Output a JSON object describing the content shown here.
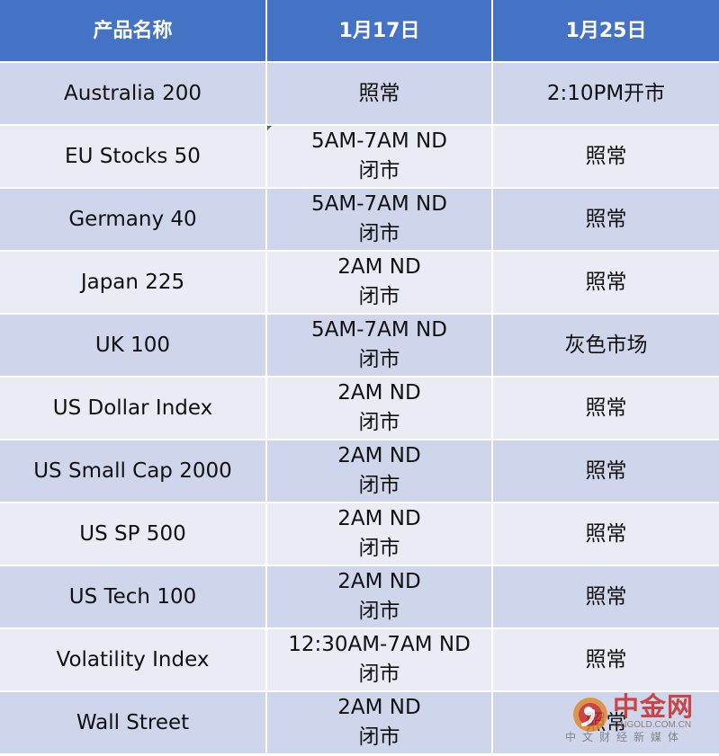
{
  "table": {
    "headers": [
      "产品名称",
      "1月17日",
      "1月25日"
    ],
    "rows": [
      {
        "product": "Australia 200",
        "jan17": [
          "照常"
        ],
        "jan25": [
          "2:10PM开市"
        ]
      },
      {
        "product": "EU Stocks 50",
        "jan17": [
          "5AM-7AM ND",
          "闭市"
        ],
        "jan25": [
          "照常"
        ]
      },
      {
        "product": "Germany 40",
        "jan17": [
          "5AM-7AM ND",
          "闭市"
        ],
        "jan25": [
          "照常"
        ]
      },
      {
        "product": "Japan 225",
        "jan17": [
          "2AM ND",
          "闭市"
        ],
        "jan25": [
          "照常"
        ]
      },
      {
        "product": "UK 100",
        "jan17": [
          "5AM-7AM ND",
          "闭市"
        ],
        "jan25": [
          "灰色市场"
        ]
      },
      {
        "product": "US Dollar Index",
        "jan17": [
          "2AM ND",
          "闭市"
        ],
        "jan25": [
          "照常"
        ]
      },
      {
        "product": "US Small Cap 2000",
        "jan17": [
          "2AM ND",
          "闭市"
        ],
        "jan25": [
          "照常"
        ]
      },
      {
        "product": "US SP 500",
        "jan17": [
          "2AM ND",
          "闭市"
        ],
        "jan25": [
          "照常"
        ]
      },
      {
        "product": "US Tech 100",
        "jan17": [
          "2AM ND",
          "闭市"
        ],
        "jan25": [
          "照常"
        ]
      },
      {
        "product": "Volatility Index",
        "jan17": [
          "12:30AM-7AM ND",
          "闭市"
        ],
        "jan25": [
          "照常"
        ]
      },
      {
        "product": "Wall Street",
        "jan17": [
          "2AM ND",
          "闭市"
        ],
        "jan25": [
          "照常"
        ]
      }
    ]
  },
  "watermark": {
    "title": "中金网",
    "domain": "CNGOLD.COM.CN",
    "subtitle": "中文财经新媒体"
  },
  "colors": {
    "header_bg": "#4472c4",
    "row_odd_bg": "#cfd5ea",
    "row_even_bg": "#e9ebf5",
    "watermark_red": "#c72c2c"
  }
}
